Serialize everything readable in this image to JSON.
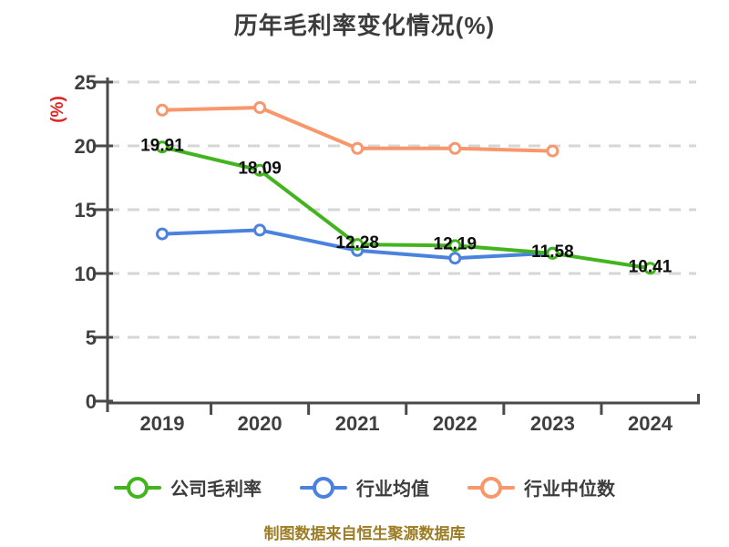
{
  "title": "历年毛利率变化情况(%)",
  "y_axis_label": "(%)",
  "caption": "制图数据来自恒生聚源数据库",
  "colors": {
    "company": "#42b51e",
    "industry_avg": "#4b82dd",
    "industry_median": "#f7976b",
    "grid": "#d6d6d6",
    "axis": "#4a4a4a",
    "tick_label": "#3f3f3f",
    "title": "#3c3c3c",
    "value_label": "#0d0d0d",
    "y_axis_label_color": "#e02222",
    "caption_color": "#9c7c24",
    "legend_text": "#3c3c3c",
    "marker_fill": "#ffffff"
  },
  "chart_data": {
    "type": "line",
    "title": "历年毛利率变化情况(%)",
    "ylabel": "(%)",
    "categories": [
      "2019",
      "2020",
      "2021",
      "2022",
      "2023",
      "2024"
    ],
    "ylim": [
      0,
      25
    ],
    "yticks": [
      0,
      5,
      10,
      15,
      20,
      25
    ],
    "grid": "horizontal-dashed",
    "legend_position": "bottom",
    "series": [
      {
        "name": "公司毛利率",
        "color": "#42b51e",
        "values": [
          19.91,
          18.09,
          12.28,
          12.19,
          11.58,
          10.41
        ],
        "point_labels": [
          "19.91",
          "18.09",
          "12.28",
          "12.19",
          "11.58",
          "10.41"
        ]
      },
      {
        "name": "行业均值",
        "color": "#4b82dd",
        "values": [
          13.1,
          13.4,
          11.8,
          11.2,
          11.6
        ]
      },
      {
        "name": "行业中位数",
        "color": "#f7976b",
        "values": [
          22.8,
          23.0,
          19.8,
          19.8,
          19.6
        ]
      }
    ]
  }
}
